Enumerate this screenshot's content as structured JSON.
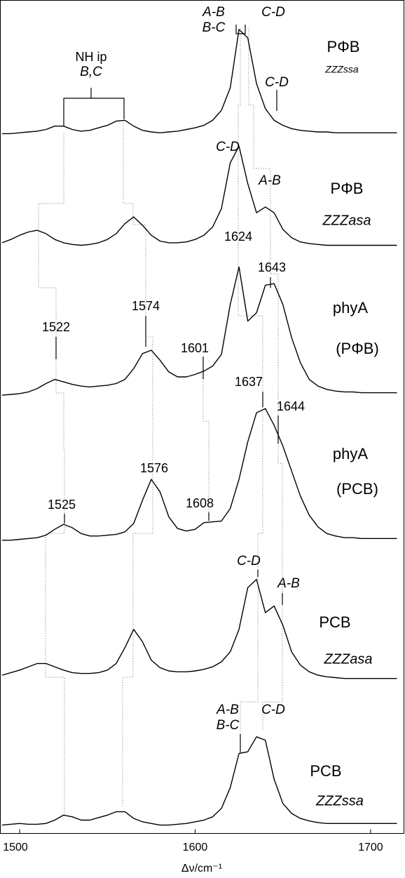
{
  "chart_data": {
    "type": "line",
    "xlabel": "Δν/cm⁻¹",
    "xlim": [
      1489,
      1719
    ],
    "xticks": [
      1500,
      1600,
      1700
    ],
    "ylim": [
      0,
      100
    ],
    "x": [
      1490,
      1495,
      1500,
      1505,
      1510,
      1515,
      1520,
      1525,
      1530,
      1535,
      1540,
      1545,
      1550,
      1555,
      1560,
      1565,
      1570,
      1575,
      1580,
      1585,
      1590,
      1595,
      1600,
      1605,
      1610,
      1615,
      1620,
      1625,
      1630,
      1635,
      1640,
      1645,
      1650,
      1655,
      1660,
      1665,
      1670,
      1675,
      1680,
      1685,
      1690,
      1695,
      1700,
      1705,
      1710,
      1715
    ],
    "series": [
      {
        "color": "#000000",
        "values": [
          84.0,
          84.0,
          84.1,
          84.2,
          84.3,
          84.5,
          84.9,
          84.9,
          84.5,
          84.3,
          84.4,
          84.7,
          85.0,
          85.5,
          85.6,
          84.9,
          84.4,
          84.2,
          84.1,
          84.2,
          84.3,
          84.5,
          84.7,
          85.0,
          85.6,
          86.8,
          89.5,
          96.5,
          95.5,
          90.0,
          87.0,
          85.6,
          85.0,
          84.6,
          84.4,
          84.3,
          84.2,
          84.2,
          84.1,
          84.1,
          84.1,
          84.1,
          84.1,
          84.1,
          84.1,
          84.1
        ]
      },
      {
        "color": "#000000",
        "values": [
          70.9,
          71.3,
          71.8,
          72.2,
          72.4,
          72.0,
          71.3,
          70.9,
          70.7,
          70.6,
          70.7,
          70.9,
          71.3,
          72.0,
          73.2,
          74.0,
          73.0,
          71.8,
          71.1,
          70.9,
          70.9,
          71.0,
          71.3,
          71.8,
          72.8,
          75.0,
          80.5,
          82.5,
          78.0,
          74.5,
          75.2,
          74.5,
          72.5,
          71.5,
          71.0,
          70.8,
          70.7,
          70.6,
          70.6,
          70.6,
          70.6,
          70.6,
          70.6,
          70.6,
          70.6,
          70.6
        ]
      },
      {
        "color": "#000000",
        "values": [
          52.6,
          52.7,
          52.8,
          53.0,
          53.4,
          54.0,
          54.5,
          54.2,
          53.9,
          53.7,
          53.6,
          53.7,
          53.8,
          54.0,
          54.5,
          55.8,
          57.6,
          58.0,
          56.8,
          55.4,
          54.8,
          54.8,
          55.1,
          55.5,
          56.1,
          57.5,
          63.5,
          68.0,
          61.5,
          62.5,
          65.8,
          66.0,
          63.5,
          59.5,
          56.5,
          54.5,
          53.7,
          53.3,
          53.1,
          53.0,
          53.0,
          52.9,
          52.9,
          52.9,
          52.9,
          52.9
        ]
      },
      {
        "color": "#000000",
        "values": [
          35.2,
          35.2,
          35.3,
          35.4,
          35.5,
          35.8,
          36.5,
          37.1,
          36.7,
          36.0,
          35.7,
          35.7,
          35.8,
          35.9,
          36.2,
          37.2,
          40.0,
          42.5,
          41.0,
          38.0,
          36.6,
          36.3,
          36.5,
          37.3,
          37.4,
          37.5,
          39.0,
          42.5,
          47.0,
          50.5,
          51.0,
          49.0,
          46.5,
          43.5,
          40.5,
          38.2,
          36.8,
          36.0,
          35.7,
          35.5,
          35.5,
          35.4,
          35.4,
          35.4,
          35.4,
          35.4
        ]
      },
      {
        "color": "#000000",
        "values": [
          19.0,
          19.3,
          19.6,
          20.0,
          20.4,
          20.4,
          20.0,
          19.6,
          19.3,
          19.2,
          19.2,
          19.3,
          19.6,
          20.4,
          22.3,
          24.5,
          23.0,
          20.8,
          19.9,
          19.5,
          19.4,
          19.4,
          19.5,
          19.7,
          20.0,
          20.6,
          21.8,
          24.5,
          29.5,
          30.5,
          26.5,
          27.3,
          25.0,
          21.8,
          20.2,
          19.4,
          19.0,
          18.8,
          18.7,
          18.6,
          18.6,
          18.6,
          18.6,
          18.6,
          18.6,
          18.6
        ]
      },
      {
        "color": "#000000",
        "values": [
          1.0,
          1.1,
          1.2,
          1.1,
          1.1,
          1.2,
          1.6,
          2.2,
          2.0,
          1.6,
          1.6,
          1.9,
          2.2,
          2.6,
          2.6,
          1.8,
          1.4,
          1.2,
          1.0,
          1.0,
          1.1,
          1.2,
          1.4,
          1.6,
          2.0,
          3.0,
          5.5,
          9.6,
          9.8,
          11.6,
          11.2,
          6.5,
          3.6,
          2.4,
          1.8,
          1.5,
          1.3,
          1.2,
          1.2,
          1.2,
          1.2,
          1.2,
          1.2,
          1.2,
          1.2,
          1.2
        ]
      }
    ],
    "annotations": [
      "NH ip",
      "B,C",
      "A-B",
      "B-C",
      "C-D",
      "C-D",
      "PΦB",
      "ZZZssa",
      "C-D",
      "A-B",
      "PΦB",
      "ZZZasa",
      "1624",
      "1643",
      "phyA",
      "(PΦB)",
      "1522",
      "1574",
      "1601",
      "1637",
      "1644",
      "phyA",
      "(PCB)",
      "1525",
      "1576",
      "1608",
      "C-D",
      "A-B",
      "PCB",
      "ZZZasa",
      "A-B",
      "B-C",
      "C-D",
      "PCB",
      "ZZZssa"
    ]
  }
}
